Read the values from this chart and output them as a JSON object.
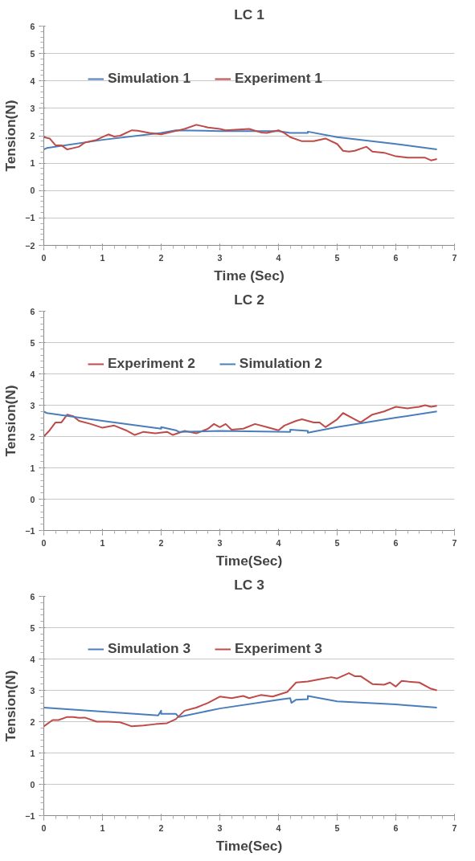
{
  "chart_data": [
    {
      "type": "line",
      "title": "LC 1",
      "xlabel": "Time (Sec)",
      "ylabel": "Tension(N)",
      "xlim": [
        0,
        7
      ],
      "ylim": [
        -2,
        6
      ],
      "xticks": [
        0,
        1,
        2,
        3,
        4,
        5,
        6,
        7
      ],
      "yticks": [
        -2,
        -1,
        0,
        1,
        2,
        3,
        4,
        5,
        6
      ],
      "grid": "y",
      "legend": "top left",
      "series": [
        {
          "name": "Simulation 1",
          "color": "#4a7ebb",
          "x": [
            0,
            0.05,
            1,
            2,
            2.25,
            3,
            4,
            4.2,
            4.5,
            4.5,
            5,
            6,
            6.7
          ],
          "values": [
            1.5,
            1.55,
            1.85,
            2.1,
            2.2,
            2.17,
            2.17,
            2.1,
            2.1,
            2.15,
            1.95,
            1.7,
            1.5
          ]
        },
        {
          "name": "Experiment 1",
          "color": "#be4b48",
          "x": [
            0,
            0.1,
            0.2,
            0.3,
            0.4,
            0.5,
            0.6,
            0.7,
            0.9,
            1.0,
            1.1,
            1.2,
            1.3,
            1.5,
            1.6,
            1.8,
            2.0,
            2.2,
            2.4,
            2.6,
            2.8,
            3.0,
            3.1,
            3.5,
            3.7,
            3.8,
            4.0,
            4.1,
            4.2,
            4.4,
            4.6,
            4.8,
            5.0,
            5.1,
            5.2,
            5.3,
            5.5,
            5.6,
            5.8,
            6.0,
            6.2,
            6.5,
            6.6,
            6.7
          ],
          "values": [
            1.95,
            1.9,
            1.65,
            1.65,
            1.5,
            1.55,
            1.6,
            1.75,
            1.85,
            1.95,
            2.05,
            1.97,
            2.0,
            2.2,
            2.18,
            2.1,
            2.05,
            2.15,
            2.25,
            2.4,
            2.3,
            2.25,
            2.2,
            2.25,
            2.12,
            2.1,
            2.2,
            2.1,
            1.95,
            1.8,
            1.8,
            1.9,
            1.7,
            1.45,
            1.42,
            1.45,
            1.6,
            1.42,
            1.38,
            1.25,
            1.2,
            1.2,
            1.1,
            1.15
          ]
        }
      ]
    },
    {
      "type": "line",
      "title": "LC 2",
      "xlabel": "Time(Sec)",
      "ylabel": "Tension(N)",
      "xlim": [
        0,
        7
      ],
      "ylim": [
        -1,
        6
      ],
      "xticks": [
        0,
        1,
        2,
        3,
        4,
        5,
        6,
        7
      ],
      "yticks": [
        -1,
        0,
        1,
        2,
        3,
        4,
        5,
        6
      ],
      "grid": "y",
      "legend": "top left",
      "series": [
        {
          "name": "Experiment 2",
          "color": "#be4b48",
          "x": [
            0,
            0.1,
            0.2,
            0.3,
            0.4,
            0.5,
            0.6,
            0.8,
            1.0,
            1.2,
            1.4,
            1.55,
            1.7,
            1.9,
            2.1,
            2.2,
            2.4,
            2.6,
            2.8,
            2.9,
            3.0,
            3.1,
            3.2,
            3.4,
            3.6,
            3.8,
            4.0,
            4.1,
            4.3,
            4.4,
            4.6,
            4.7,
            4.8,
            5.0,
            5.1,
            5.3,
            5.4,
            5.6,
            5.8,
            6.0,
            6.2,
            6.4,
            6.5,
            6.6,
            6.7
          ],
          "values": [
            2.0,
            2.2,
            2.45,
            2.45,
            2.7,
            2.65,
            2.5,
            2.4,
            2.28,
            2.35,
            2.2,
            2.05,
            2.15,
            2.1,
            2.15,
            2.05,
            2.18,
            2.1,
            2.25,
            2.4,
            2.3,
            2.4,
            2.22,
            2.25,
            2.4,
            2.3,
            2.2,
            2.35,
            2.5,
            2.55,
            2.45,
            2.45,
            2.3,
            2.55,
            2.75,
            2.55,
            2.45,
            2.7,
            2.8,
            2.95,
            2.9,
            2.95,
            3.0,
            2.95,
            2.98
          ]
        },
        {
          "name": "Simulation 2",
          "color": "#4a7ebb",
          "x": [
            0,
            0.05,
            1,
            2,
            2,
            2.25,
            2.3,
            3,
            4.2,
            4.2,
            4.5,
            4.5,
            5,
            6,
            6.7
          ],
          "values": [
            2.8,
            2.75,
            2.5,
            2.25,
            2.3,
            2.2,
            2.15,
            2.18,
            2.15,
            2.22,
            2.18,
            2.12,
            2.3,
            2.6,
            2.8
          ]
        }
      ]
    },
    {
      "type": "line",
      "title": "LC 3",
      "xlabel": "Time(Sec)",
      "ylabel": "Tension(N)",
      "xlim": [
        0,
        7
      ],
      "ylim": [
        -1,
        6
      ],
      "xticks": [
        0,
        1,
        2,
        3,
        4,
        5,
        6,
        7
      ],
      "yticks": [
        -1,
        0,
        1,
        2,
        3,
        4,
        5,
        6
      ],
      "grid": "y",
      "legend": "top left",
      "series": [
        {
          "name": "Simulation 3",
          "color": "#4a7ebb",
          "x": [
            0,
            1,
            1.95,
            2,
            2,
            2.25,
            2.3,
            3,
            4,
            4.2,
            4.22,
            4.3,
            4.5,
            4.5,
            5,
            6,
            6.7
          ],
          "values": [
            2.45,
            2.32,
            2.2,
            2.35,
            2.25,
            2.25,
            2.15,
            2.42,
            2.7,
            2.75,
            2.6,
            2.7,
            2.72,
            2.82,
            2.65,
            2.55,
            2.45
          ]
        },
        {
          "name": "Experiment 3",
          "color": "#be4b48",
          "x": [
            0,
            0.15,
            0.25,
            0.4,
            0.5,
            0.6,
            0.7,
            0.9,
            1.1,
            1.3,
            1.5,
            1.7,
            1.9,
            2.1,
            2.25,
            2.4,
            2.6,
            2.8,
            3.0,
            3.2,
            3.4,
            3.5,
            3.7,
            3.9,
            4.15,
            4.3,
            4.5,
            4.7,
            4.9,
            5.0,
            5.2,
            5.3,
            5.4,
            5.6,
            5.8,
            5.9,
            6.0,
            6.1,
            6.2,
            6.4,
            6.6,
            6.7
          ],
          "values": [
            1.85,
            2.05,
            2.05,
            2.15,
            2.15,
            2.12,
            2.13,
            2.0,
            2.0,
            1.98,
            1.85,
            1.88,
            1.92,
            1.95,
            2.08,
            2.35,
            2.45,
            2.6,
            2.8,
            2.75,
            2.82,
            2.75,
            2.85,
            2.8,
            2.95,
            3.25,
            3.28,
            3.35,
            3.42,
            3.38,
            3.55,
            3.45,
            3.45,
            3.2,
            3.18,
            3.25,
            3.12,
            3.3,
            3.28,
            3.25,
            3.05,
            3.0
          ]
        }
      ]
    }
  ]
}
